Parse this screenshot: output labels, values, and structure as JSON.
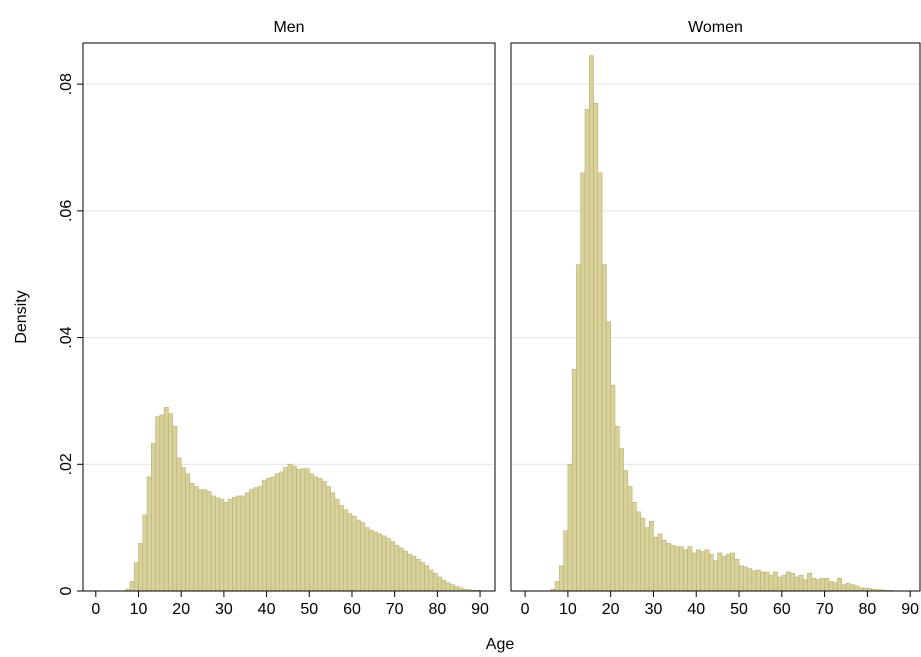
{
  "chart_data": [
    {
      "type": "histogram",
      "title": "Men",
      "ylabel": "Density",
      "xlabel": "Age",
      "color": "#d8d29a",
      "bins": [
        7,
        8,
        9,
        10,
        11,
        12,
        13,
        14,
        15,
        16,
        17,
        18,
        19,
        20,
        21,
        22,
        23,
        24,
        25,
        26,
        27,
        28,
        29,
        30,
        31,
        32,
        33,
        34,
        35,
        36,
        37,
        38,
        39,
        40,
        41,
        42,
        43,
        44,
        45,
        46,
        47,
        48,
        49,
        50,
        51,
        52,
        53,
        54,
        55,
        56,
        57,
        58,
        59,
        60,
        61,
        62,
        63,
        64,
        65,
        66,
        67,
        68,
        69,
        70,
        71,
        72,
        73,
        74,
        75,
        76,
        77,
        78,
        79,
        80,
        81,
        82,
        83,
        84,
        85,
        86,
        87,
        88,
        89,
        90
      ],
      "values": [
        0.0003,
        0.0015,
        0.0045,
        0.0075,
        0.012,
        0.018,
        0.0233,
        0.0275,
        0.0278,
        0.029,
        0.028,
        0.026,
        0.021,
        0.0195,
        0.0185,
        0.017,
        0.0165,
        0.016,
        0.016,
        0.0157,
        0.015,
        0.0147,
        0.0145,
        0.014,
        0.0145,
        0.0148,
        0.015,
        0.015,
        0.0155,
        0.016,
        0.0163,
        0.0165,
        0.0175,
        0.0178,
        0.018,
        0.0185,
        0.0188,
        0.0195,
        0.02,
        0.0197,
        0.0192,
        0.0193,
        0.0193,
        0.0185,
        0.018,
        0.0178,
        0.0173,
        0.0165,
        0.0155,
        0.0145,
        0.0135,
        0.0128,
        0.0122,
        0.0118,
        0.0112,
        0.0108,
        0.01,
        0.0096,
        0.0093,
        0.009,
        0.0087,
        0.0083,
        0.0078,
        0.0072,
        0.0068,
        0.0063,
        0.0058,
        0.0055,
        0.005,
        0.0045,
        0.004,
        0.0033,
        0.0028,
        0.0022,
        0.0017,
        0.0013,
        0.001,
        0.0007,
        0.0005,
        0.0003,
        0.0002,
        0.0001,
        0.0001
      ],
      "xlim": [
        -3,
        93.5
      ],
      "ylim": [
        0,
        0.0865
      ],
      "xticks": [
        0,
        10,
        20,
        30,
        40,
        50,
        60,
        70,
        80,
        90
      ],
      "yticks": [
        0,
        {
          "value": 0.02,
          "label": ".02"
        },
        {
          "value": 0.04,
          "label": ".04"
        },
        {
          "value": 0.06,
          "label": ".06"
        },
        {
          "value": 0.08,
          "label": ".08"
        }
      ],
      "grid": true
    },
    {
      "type": "histogram",
      "title": "Women",
      "color": "#d8d29a",
      "bins": [
        6,
        7,
        8,
        9,
        10,
        11,
        12,
        13,
        14,
        15,
        16,
        17,
        18,
        19,
        20,
        21,
        22,
        23,
        24,
        25,
        26,
        27,
        28,
        29,
        30,
        31,
        32,
        33,
        34,
        35,
        36,
        37,
        38,
        39,
        40,
        41,
        42,
        43,
        44,
        45,
        46,
        47,
        48,
        49,
        50,
        51,
        52,
        53,
        54,
        55,
        56,
        57,
        58,
        59,
        60,
        61,
        62,
        63,
        64,
        65,
        66,
        67,
        68,
        69,
        70,
        71,
        72,
        73,
        74,
        75,
        76,
        77,
        78,
        79,
        80,
        81,
        82,
        83,
        84,
        85,
        86
      ],
      "values": [
        0.0003,
        0.0015,
        0.004,
        0.0095,
        0.02,
        0.035,
        0.0515,
        0.066,
        0.076,
        0.0845,
        0.077,
        0.066,
        0.0515,
        0.0425,
        0.0325,
        0.026,
        0.0225,
        0.019,
        0.0165,
        0.014,
        0.0125,
        0.0115,
        0.01,
        0.011,
        0.0085,
        0.009,
        0.008,
        0.0075,
        0.0072,
        0.007,
        0.007,
        0.0065,
        0.007,
        0.006,
        0.0065,
        0.0062,
        0.0065,
        0.0058,
        0.0048,
        0.006,
        0.0055,
        0.0058,
        0.006,
        0.005,
        0.004,
        0.0038,
        0.0035,
        0.0032,
        0.0033,
        0.003,
        0.003,
        0.0025,
        0.003,
        0.0022,
        0.0025,
        0.003,
        0.0028,
        0.0022,
        0.0025,
        0.0018,
        0.0028,
        0.002,
        0.0018,
        0.002,
        0.002,
        0.0015,
        0.0013,
        0.002,
        0.001,
        0.0012,
        0.001,
        0.0008,
        0.0005,
        0.0005,
        0.0004,
        0.0003,
        0.0002,
        0.0002,
        0.0001,
        0.0001
      ],
      "xlim": [
        -3.3,
        92.3
      ],
      "ylim": [
        0,
        0.0865
      ],
      "xticks": [
        0,
        10,
        20,
        30,
        40,
        50,
        60,
        70,
        80,
        90
      ],
      "grid": true
    }
  ]
}
